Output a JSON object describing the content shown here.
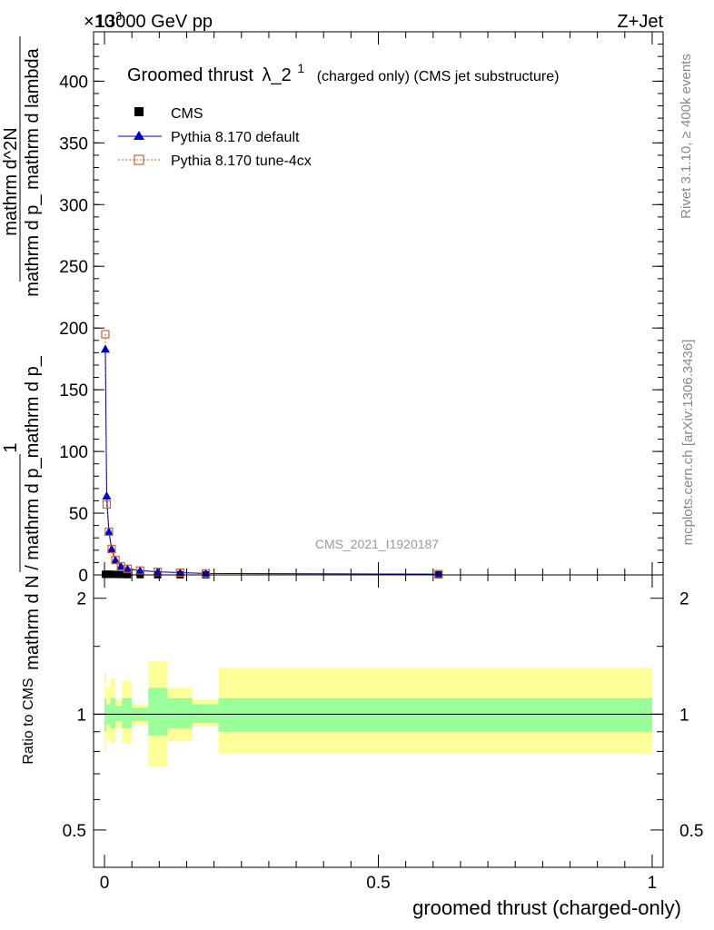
{
  "header": {
    "left_label": "13000 GeV pp",
    "right_label": "Z+Jet",
    "exponent_label": "×10",
    "exponent_power": "3"
  },
  "plot_title": {
    "main": "Groomed thrust",
    "lambda": "λ_2",
    "superscript": "1",
    "suffix": "(charged only) (CMS jet substructure)"
  },
  "side_labels": {
    "rivet": "Rivet 3.1.10, ≥ 400k events",
    "mcplots": "mcplots.cern.ch [arXiv:1306.3436]"
  },
  "analysis_id": "CMS_2021_I1920187",
  "ylabel_main": {
    "numerator_left": "1",
    "denominator_left": "mathrm d N / mathrm d p_mathrm d p_",
    "numerator_right": "mathrm d^2N",
    "denominator_right": "mathrm d p_ mathrm d lambda"
  },
  "ratio_ylabel": "Ratio to CMS",
  "legend": [
    {
      "label": "CMS",
      "marker": "square-filled",
      "color": "#000000"
    },
    {
      "label": "Pythia 8.170 default",
      "marker": "triangle",
      "color": "#0000cc"
    },
    {
      "label": "Pythia 8.170 tune-4cx",
      "marker": "square-open",
      "color": "#c86428"
    }
  ],
  "colors": {
    "data": "#000000",
    "default": "#0000cc",
    "tune4cx": "#c86428",
    "band_inner": "#99ff99",
    "band_outer": "#ffff99"
  },
  "chart_data": {
    "type": "line",
    "xlabel": "groomed thrust (charged-only)",
    "x_ticks": [
      "0",
      "0.5",
      "1"
    ],
    "xlim": [
      -0.02,
      1.02
    ],
    "main": {
      "ylim": [
        0,
        440
      ],
      "y_ticks": [
        "0",
        "50",
        "100",
        "150",
        "200",
        "250",
        "300",
        "350",
        "400"
      ],
      "y_scale_note": "×10^3",
      "x": [
        0.0015,
        0.004,
        0.008,
        0.013,
        0.02,
        0.03,
        0.042,
        0.065,
        0.097,
        0.138,
        0.185,
        0.61
      ],
      "series": [
        {
          "name": "CMS",
          "values": [
            0.5,
            0.5,
            0.5,
            0.5,
            0.4,
            0.3,
            0.2,
            0.2,
            0.1,
            0.1,
            0.1,
            0.05
          ]
        },
        {
          "name": "Pythia 8.170 default",
          "values": [
            183,
            64,
            35,
            21,
            12,
            7,
            5,
            3.5,
            2.5,
            1.8,
            1.2,
            0.6
          ]
        },
        {
          "name": "Pythia 8.170 tune-4cx",
          "values": [
            195,
            57,
            35,
            21,
            12,
            7,
            5,
            3.5,
            2.5,
            1.8,
            1.2,
            0.6
          ]
        }
      ]
    },
    "ratio": {
      "ylabel": "Ratio to CMS",
      "ylim": [
        0.4,
        2.3
      ],
      "y_ticks": [
        "0.5",
        "1",
        "2"
      ],
      "y_log": true,
      "reference": 1.0,
      "bins": [
        {
          "lo": 0.0,
          "hi": 0.003,
          "inner": [
            0.9,
            1.1
          ],
          "outer": [
            0.8,
            1.28
          ]
        },
        {
          "lo": 0.003,
          "hi": 0.011,
          "inner": [
            0.94,
            1.06
          ],
          "outer": [
            0.86,
            1.18
          ]
        },
        {
          "lo": 0.011,
          "hi": 0.02,
          "inner": [
            0.92,
            1.1
          ],
          "outer": [
            0.84,
            1.24
          ]
        },
        {
          "lo": 0.02,
          "hi": 0.032,
          "inner": [
            0.96,
            1.05
          ],
          "outer": [
            0.92,
            1.09
          ]
        },
        {
          "lo": 0.032,
          "hi": 0.05,
          "inner": [
            0.92,
            1.1
          ],
          "outer": [
            0.84,
            1.22
          ]
        },
        {
          "lo": 0.05,
          "hi": 0.08,
          "inner": [
            0.96,
            1.04
          ],
          "outer": [
            0.94,
            1.06
          ]
        },
        {
          "lo": 0.08,
          "hi": 0.115,
          "inner": [
            0.88,
            1.17
          ],
          "outer": [
            0.73,
            1.37
          ]
        },
        {
          "lo": 0.115,
          "hi": 0.16,
          "inner": [
            0.92,
            1.1
          ],
          "outer": [
            0.85,
            1.17
          ]
        },
        {
          "lo": 0.16,
          "hi": 0.208,
          "inner": [
            0.95,
            1.06
          ],
          "outer": [
            0.93,
            1.09
          ]
        },
        {
          "lo": 0.208,
          "hi": 1.0,
          "inner": [
            0.9,
            1.1
          ],
          "outer": [
            0.79,
            1.32
          ]
        }
      ]
    }
  }
}
